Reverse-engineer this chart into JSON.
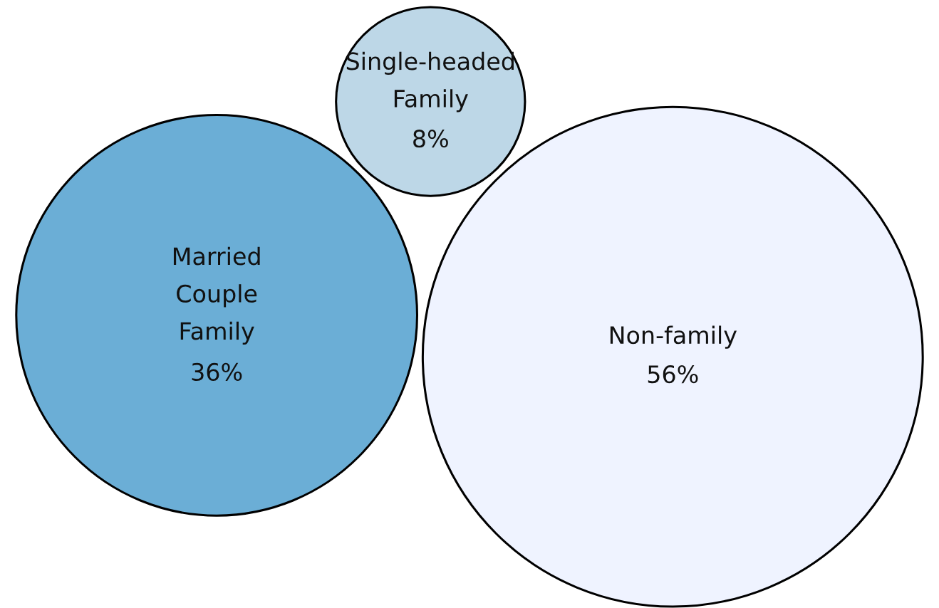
{
  "chart_data": {
    "type": "other",
    "categories": [
      "Married\nCouple\nFamily",
      "Single-headed\nFamily",
      "Non-family"
    ],
    "values": [
      36,
      8,
      56
    ],
    "value_labels": [
      "36%",
      "8%",
      "56%"
    ],
    "colors": [
      "#6baed6",
      "#bdd7e7",
      "#eff3ff"
    ]
  }
}
